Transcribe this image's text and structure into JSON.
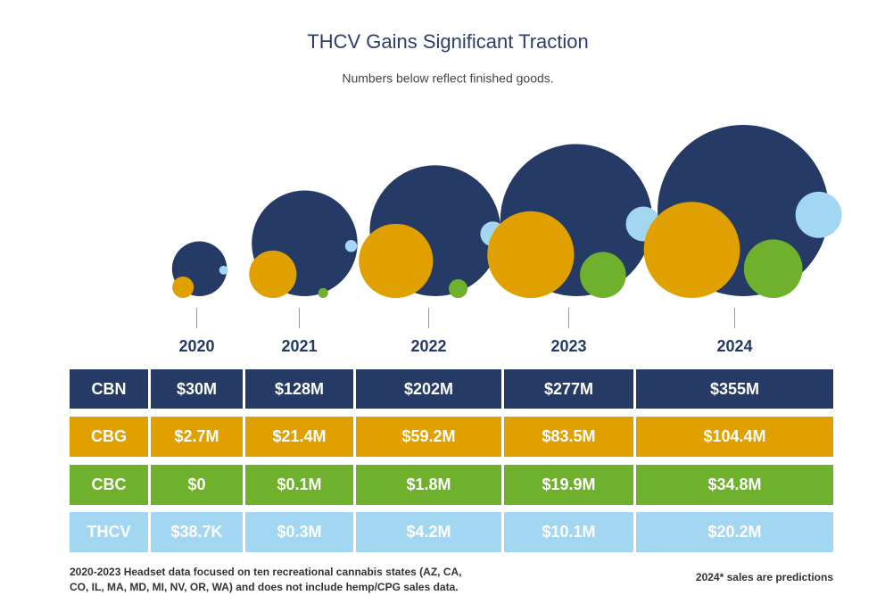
{
  "chart_data": {
    "type": "bubble",
    "title": "THCV Gains Significant Traction",
    "subtitle": "Numbers below reflect finished goods.",
    "categories": [
      "2020",
      "2021",
      "2022",
      "2023",
      "2024"
    ],
    "series": [
      {
        "name": "CBN",
        "color": "#253a64",
        "values": [
          30000000,
          128000000,
          202000000,
          277000000,
          355000000
        ],
        "value_labels": [
          "$30M",
          "$128M",
          "$202M",
          "$277M",
          "$355M"
        ]
      },
      {
        "name": "CBG",
        "color": "#e0a000",
        "values": [
          2700000,
          21400000,
          59200000,
          83500000,
          104400000
        ],
        "value_labels": [
          "$2.7M",
          "$21.4M",
          "$59.2M",
          "$83.5M",
          "$104.4M"
        ]
      },
      {
        "name": "CBC",
        "color": "#6fb02c",
        "values": [
          0,
          100000,
          1800000,
          19900000,
          34800000
        ],
        "value_labels": [
          "$0",
          "$0.1M",
          "$1.8M",
          "$19.9M",
          "$34.8M"
        ]
      },
      {
        "name": "THCV",
        "color": "#a3d6f1",
        "values": [
          38700,
          300000,
          4200000,
          10100000,
          20200000
        ],
        "value_labels": [
          "$38.7K",
          "$0.3M",
          "$4.2M",
          "$10.1M",
          "$20.2M"
        ]
      }
    ],
    "footnote": "2020-2023 Headset data focused on ten recreational cannabis states (AZ, CA, CO, IL, MA, MD, MI, NV, OR, WA) and does not include hemp/CPG sales data.",
    "note": "2024* sales are predictions"
  }
}
